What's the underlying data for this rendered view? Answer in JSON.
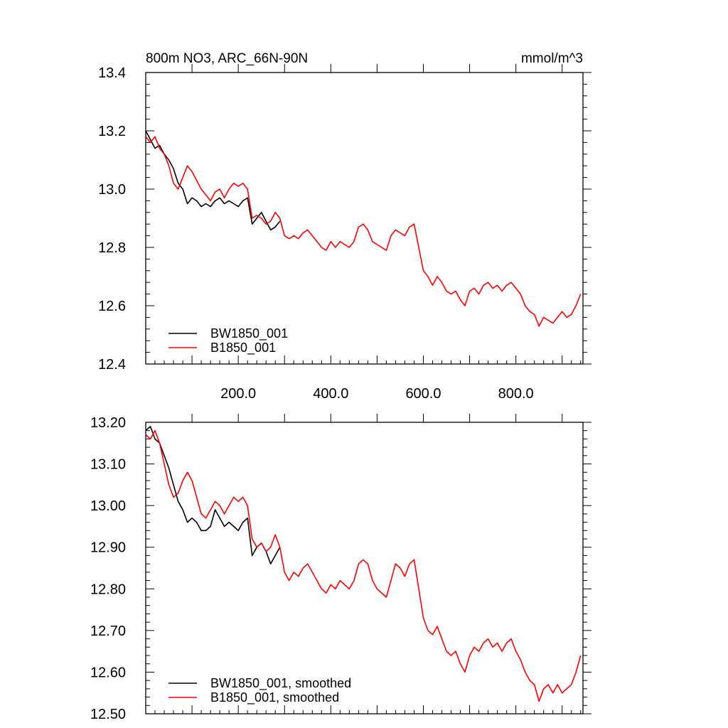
{
  "chart_data": [
    {
      "type": "line",
      "title": "800m NO3, ARC_66N-90N",
      "units": "mmol/m^3",
      "xlim": [
        0,
        945
      ],
      "ylim": [
        12.4,
        13.4
      ],
      "xticks": [
        "200.0",
        "400.0",
        "600.0",
        "800.0"
      ],
      "xtick_values": [
        200,
        400,
        600,
        800
      ],
      "yticks": [
        "12.4",
        "12.6",
        "12.8",
        "13.0",
        "13.2",
        "13.4"
      ],
      "ytick_values": [
        12.4,
        12.6,
        12.8,
        13.0,
        13.2,
        13.4
      ],
      "grid": false,
      "legend_position": "bottom-left",
      "series": [
        {
          "name": "BW1850_001",
          "color": "#000000",
          "x": [
            0,
            10,
            20,
            30,
            40,
            50,
            60,
            70,
            80,
            90,
            100,
            110,
            120,
            130,
            140,
            150,
            160,
            170,
            180,
            190,
            200,
            210,
            220,
            230,
            240,
            250,
            260,
            270,
            280,
            290
          ],
          "y": [
            13.2,
            13.17,
            13.14,
            13.15,
            13.12,
            13.1,
            13.07,
            13.02,
            13.0,
            12.95,
            12.97,
            12.96,
            12.94,
            12.95,
            12.94,
            12.96,
            12.97,
            12.95,
            12.96,
            12.95,
            12.94,
            12.96,
            12.97,
            12.88,
            12.9,
            12.92,
            12.89,
            12.86,
            12.87,
            12.89
          ]
        },
        {
          "name": "B1850_001",
          "color": "#ff0000",
          "x": [
            0,
            10,
            20,
            30,
            40,
            50,
            60,
            70,
            80,
            90,
            100,
            110,
            120,
            130,
            140,
            150,
            160,
            170,
            180,
            190,
            200,
            210,
            220,
            230,
            240,
            250,
            260,
            270,
            280,
            290,
            300,
            310,
            320,
            330,
            340,
            350,
            360,
            370,
            380,
            390,
            400,
            410,
            420,
            430,
            440,
            450,
            460,
            470,
            480,
            490,
            500,
            510,
            520,
            530,
            540,
            550,
            560,
            570,
            580,
            590,
            600,
            610,
            620,
            630,
            640,
            650,
            660,
            670,
            680,
            690,
            700,
            710,
            720,
            730,
            740,
            750,
            760,
            770,
            780,
            790,
            800,
            810,
            820,
            830,
            840,
            850,
            860,
            870,
            880,
            890,
            900,
            910,
            920,
            930,
            940
          ],
          "y": [
            13.18,
            13.16,
            13.18,
            13.14,
            13.12,
            13.08,
            13.02,
            13.0,
            13.04,
            13.08,
            13.06,
            13.03,
            13.0,
            12.98,
            12.96,
            12.99,
            13.0,
            12.97,
            13.0,
            13.02,
            13.01,
            13.02,
            13.0,
            12.9,
            12.91,
            12.9,
            12.88,
            12.89,
            12.92,
            12.9,
            12.84,
            12.83,
            12.84,
            12.83,
            12.85,
            12.86,
            12.84,
            12.82,
            12.8,
            12.79,
            12.82,
            12.8,
            12.82,
            12.81,
            12.8,
            12.82,
            12.87,
            12.88,
            12.86,
            12.82,
            12.81,
            12.8,
            12.79,
            12.84,
            12.86,
            12.85,
            12.84,
            12.87,
            12.88,
            12.8,
            12.72,
            12.7,
            12.67,
            12.7,
            12.68,
            12.65,
            12.64,
            12.65,
            12.62,
            12.6,
            12.65,
            12.66,
            12.64,
            12.67,
            12.68,
            12.66,
            12.67,
            12.65,
            12.67,
            12.68,
            12.66,
            12.64,
            12.6,
            12.58,
            12.57,
            12.53,
            12.56,
            12.55,
            12.54,
            12.56,
            12.58,
            12.56,
            12.57,
            12.6,
            12.64
          ]
        }
      ]
    },
    {
      "type": "line",
      "xlim": [
        0,
        945
      ],
      "ylim": [
        12.5,
        13.2
      ],
      "ytick_labels": [
        "12.50",
        "12.60",
        "12.70",
        "12.80",
        "12.90",
        "13.00",
        "13.10",
        "13.20"
      ],
      "ytick_values": [
        12.5,
        12.6,
        12.7,
        12.8,
        12.9,
        13.0,
        13.1,
        13.2
      ],
      "grid": false,
      "legend_position": "bottom-left",
      "series": [
        {
          "name": "BW1850_001, smoothed",
          "color": "#000000",
          "x": [
            0,
            10,
            20,
            30,
            40,
            50,
            60,
            70,
            80,
            90,
            100,
            110,
            120,
            130,
            140,
            150,
            160,
            170,
            180,
            190,
            200,
            210,
            220,
            230,
            240,
            250,
            260,
            270,
            280,
            290
          ],
          "y": [
            13.18,
            13.19,
            13.16,
            13.15,
            13.12,
            13.09,
            13.05,
            13.01,
            12.99,
            12.96,
            12.97,
            12.96,
            12.94,
            12.94,
            12.95,
            12.99,
            12.97,
            12.95,
            12.96,
            12.95,
            12.94,
            12.96,
            12.97,
            12.88,
            12.9,
            12.91,
            12.89,
            12.86,
            12.88,
            12.9
          ]
        },
        {
          "name": "B1850_001, smoothed",
          "color": "#ff0000",
          "x": [
            0,
            10,
            20,
            30,
            40,
            50,
            60,
            70,
            80,
            90,
            100,
            110,
            120,
            130,
            140,
            150,
            160,
            170,
            180,
            190,
            200,
            210,
            220,
            230,
            240,
            250,
            260,
            270,
            280,
            290,
            300,
            310,
            320,
            330,
            340,
            350,
            360,
            370,
            380,
            390,
            400,
            410,
            420,
            430,
            440,
            450,
            460,
            470,
            480,
            490,
            500,
            510,
            520,
            530,
            540,
            550,
            560,
            570,
            580,
            590,
            600,
            610,
            620,
            630,
            640,
            650,
            660,
            670,
            680,
            690,
            700,
            710,
            720,
            730,
            740,
            750,
            760,
            770,
            780,
            790,
            800,
            810,
            820,
            830,
            840,
            850,
            860,
            870,
            880,
            890,
            900,
            910,
            920,
            930,
            940
          ],
          "y": [
            13.17,
            13.16,
            13.18,
            13.15,
            13.1,
            13.05,
            13.02,
            13.03,
            13.06,
            13.08,
            13.06,
            13.02,
            12.98,
            12.97,
            12.99,
            13.01,
            13.0,
            12.98,
            13.0,
            13.02,
            13.01,
            13.02,
            13.0,
            12.92,
            12.9,
            12.91,
            12.89,
            12.9,
            12.93,
            12.9,
            12.84,
            12.82,
            12.84,
            12.83,
            12.85,
            12.86,
            12.84,
            12.82,
            12.8,
            12.79,
            12.81,
            12.8,
            12.82,
            12.81,
            12.8,
            12.82,
            12.86,
            12.87,
            12.86,
            12.82,
            12.8,
            12.79,
            12.78,
            12.82,
            12.86,
            12.85,
            12.83,
            12.86,
            12.87,
            12.8,
            12.73,
            12.7,
            12.69,
            12.71,
            12.68,
            12.65,
            12.64,
            12.65,
            12.62,
            12.6,
            12.64,
            12.66,
            12.65,
            12.67,
            12.68,
            12.66,
            12.67,
            12.65,
            12.67,
            12.68,
            12.65,
            12.63,
            12.6,
            12.58,
            12.57,
            12.53,
            12.56,
            12.57,
            12.55,
            12.57,
            12.55,
            12.56,
            12.57,
            12.6,
            12.64
          ]
        }
      ]
    }
  ]
}
